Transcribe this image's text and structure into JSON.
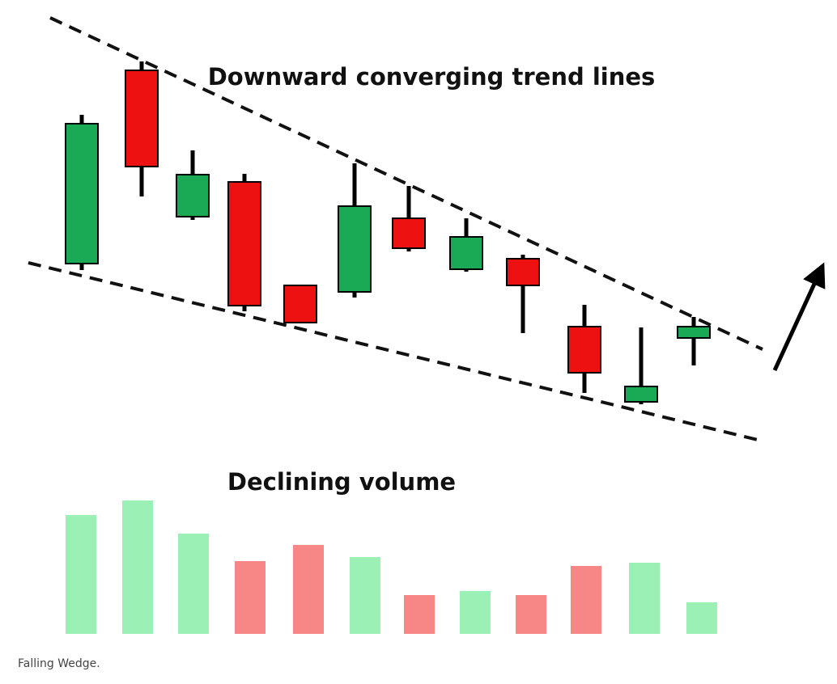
{
  "diagram": {
    "title": "Downward converging trend lines",
    "volume_label": "Declining volume",
    "caption": "Falling Wedge."
  }
}
